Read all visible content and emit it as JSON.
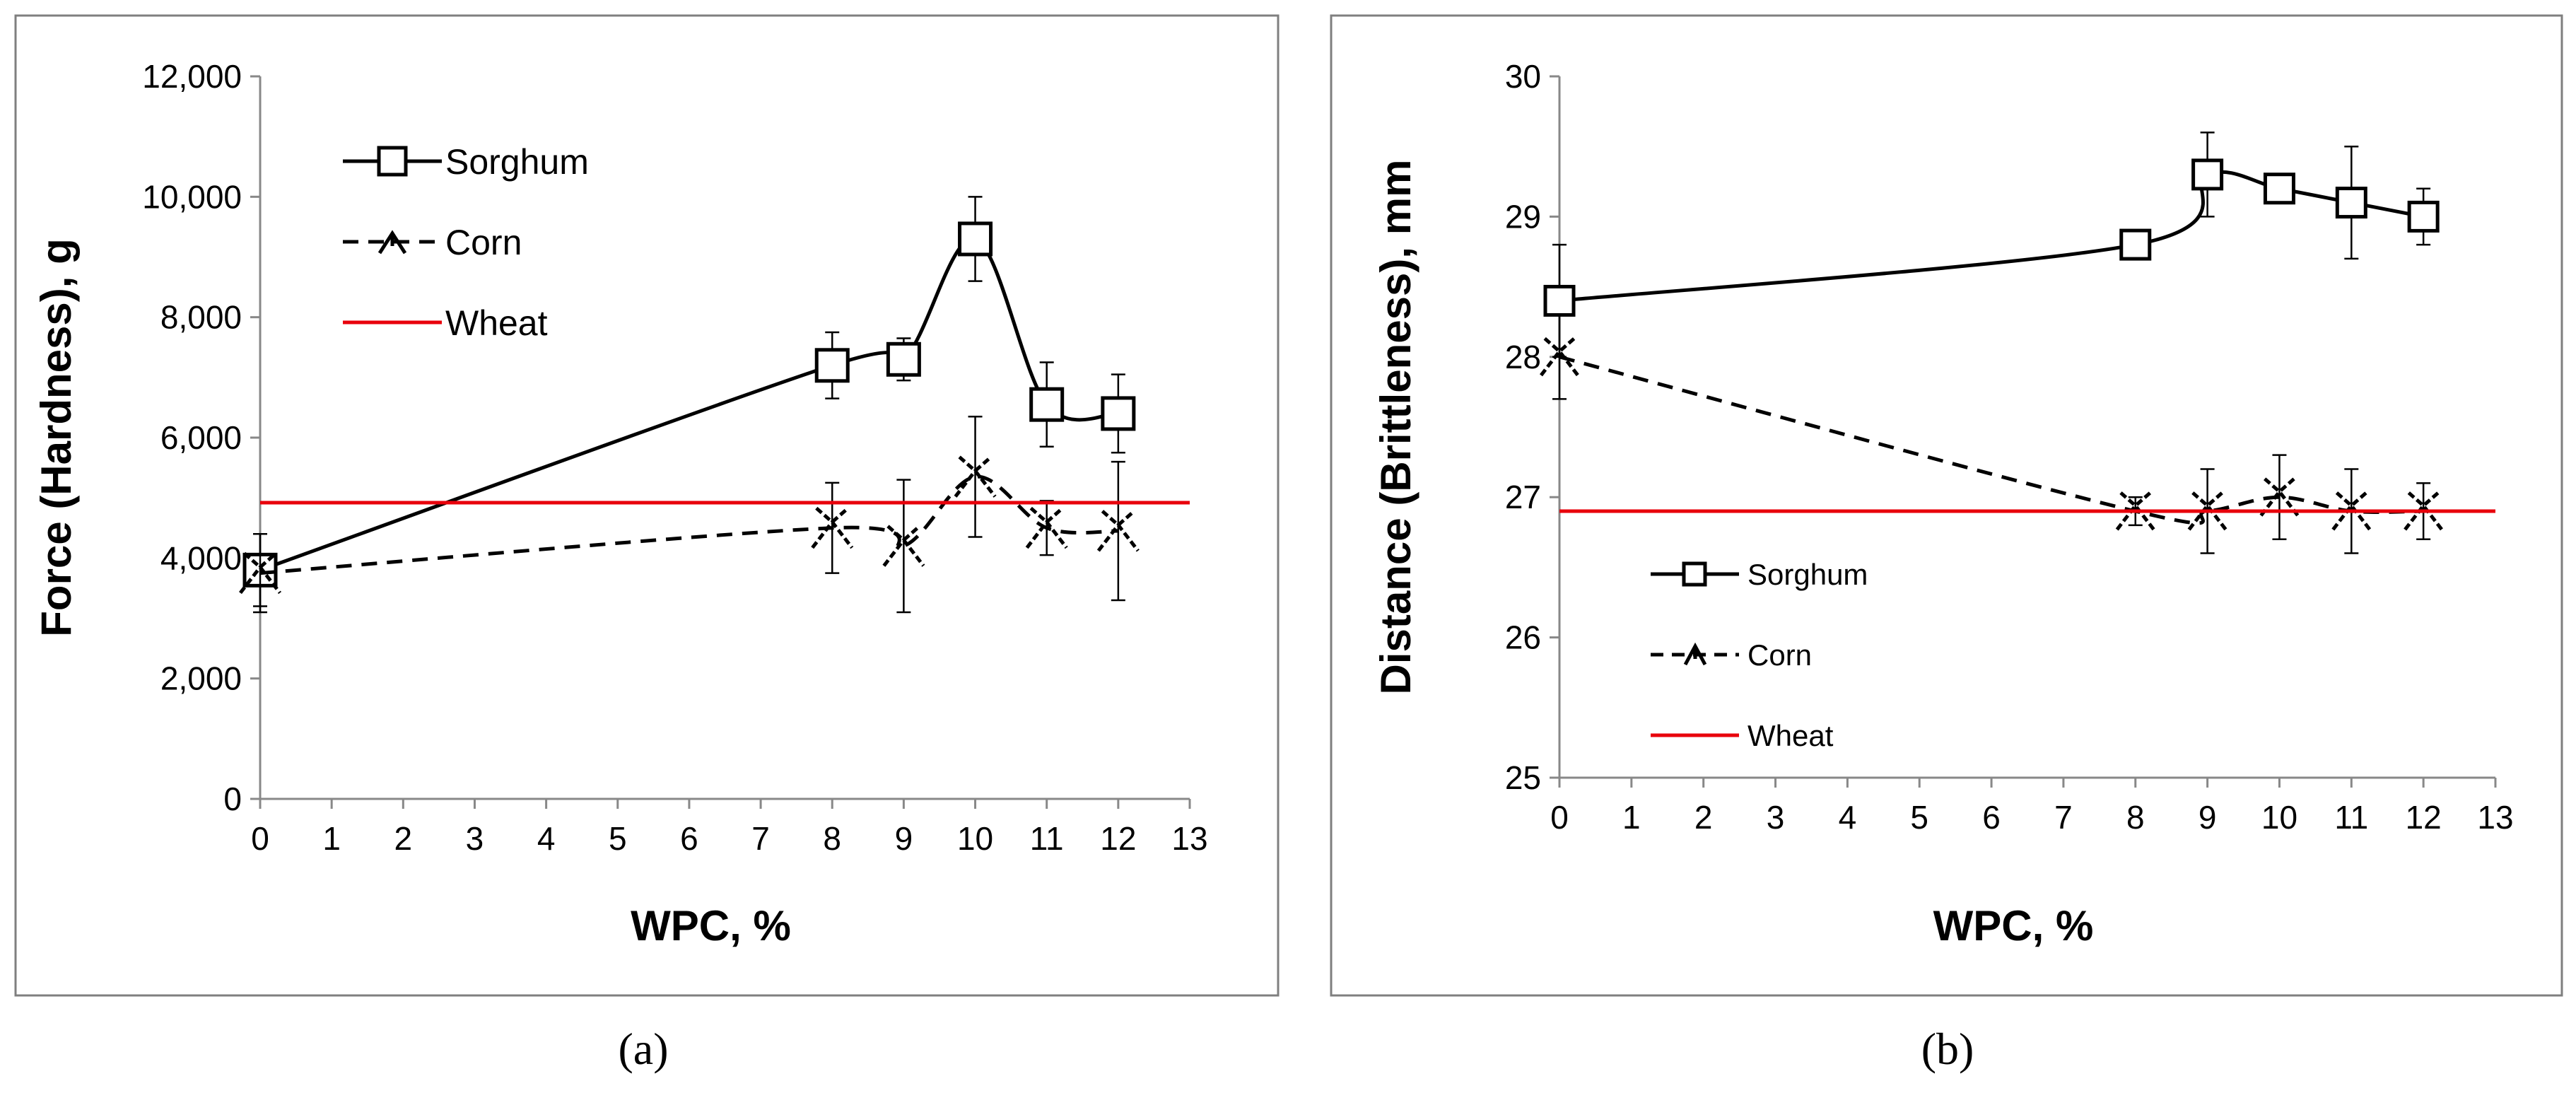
{
  "captions": {
    "a": "(a)",
    "b": "(b)"
  },
  "chart_data": [
    {
      "type": "line",
      "panel": "a",
      "xlabel": "WPC, %",
      "ylabel": "Force (Hardness), g",
      "xlim": [
        0,
        13
      ],
      "ylim": [
        0,
        12000
      ],
      "x_ticks": [
        0,
        1,
        2,
        3,
        4,
        5,
        6,
        7,
        8,
        9,
        10,
        11,
        12,
        13
      ],
      "y_ticks": [
        0,
        2000,
        4000,
        6000,
        8000,
        10000,
        12000
      ],
      "y_tick_labels": [
        "0",
        "2,000",
        "4,000",
        "6,000",
        "8,000",
        "10,000",
        "12,000"
      ],
      "legend_position": "top-left",
      "series": [
        {
          "name": "Sorghum",
          "style": "solid-square",
          "color": "#000000",
          "x": [
            0,
            8,
            9,
            10,
            11,
            12
          ],
          "values": [
            3800,
            7200,
            7300,
            9300,
            6550,
            6400
          ],
          "errors": [
            600,
            550,
            350,
            700,
            700,
            650
          ]
        },
        {
          "name": "Corn",
          "style": "dashed-star",
          "color": "#000000",
          "x": [
            0,
            8,
            9,
            10,
            11,
            12
          ],
          "values": [
            3750,
            4500,
            4200,
            5350,
            4500,
            4450
          ],
          "errors": [
            650,
            750,
            1100,
            1000,
            450,
            1150
          ]
        },
        {
          "name": "Wheat",
          "style": "red-line",
          "color": "#e8000b",
          "x": [
            0,
            13
          ],
          "values": [
            4920,
            4920
          ]
        }
      ]
    },
    {
      "type": "line",
      "panel": "b",
      "xlabel": "WPC, %",
      "ylabel": "Distance (Brittleness), mm",
      "xlim": [
        0,
        13
      ],
      "ylim": [
        25,
        30
      ],
      "x_ticks": [
        0,
        1,
        2,
        3,
        4,
        5,
        6,
        7,
        8,
        9,
        10,
        11,
        12,
        13
      ],
      "y_ticks": [
        25,
        26,
        27,
        28,
        29,
        30
      ],
      "y_tick_labels": [
        "25",
        "26",
        "27",
        "28",
        "29",
        "30"
      ],
      "legend_position": "bottom-left",
      "series": [
        {
          "name": "Sorghum",
          "style": "solid-square",
          "color": "#000000",
          "x": [
            0,
            8,
            9,
            10,
            11,
            12
          ],
          "values": [
            28.4,
            28.8,
            29.3,
            29.2,
            29.1,
            29.0
          ],
          "errors": [
            0.4,
            0.1,
            0.3,
            0.05,
            0.4,
            0.2
          ]
        },
        {
          "name": "Corn",
          "style": "dashed-star",
          "color": "#000000",
          "x": [
            0,
            8,
            9,
            10,
            11,
            12
          ],
          "values": [
            28.0,
            26.9,
            26.9,
            27.0,
            26.9,
            26.9
          ],
          "errors": [
            0.3,
            0.1,
            0.3,
            0.3,
            0.3,
            0.2
          ]
        },
        {
          "name": "Wheat",
          "style": "red-line",
          "color": "#e8000b",
          "x": [
            0,
            13
          ],
          "values": [
            26.9,
            26.9
          ]
        }
      ]
    }
  ]
}
